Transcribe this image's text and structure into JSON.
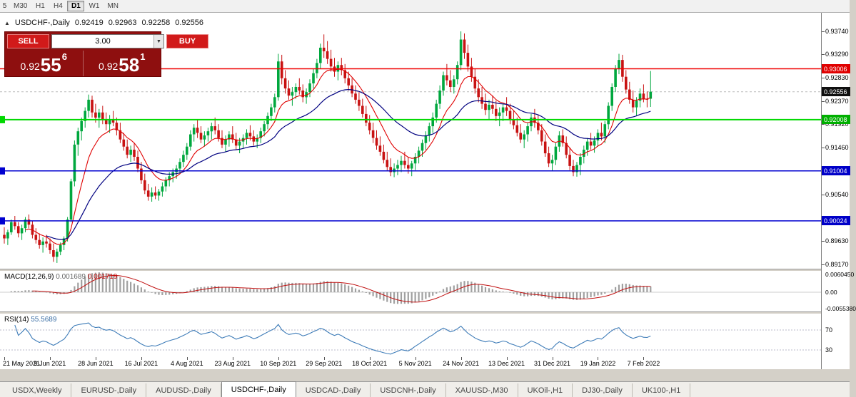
{
  "toolbar": {
    "timeframes": [
      "5",
      "M30",
      "H1",
      "H4",
      "D1",
      "W1",
      "MN"
    ],
    "active": "D1"
  },
  "symbol_bar": {
    "collapse_icon": "▲",
    "symbol": "USDCHF-,Daily",
    "open": "0.92419",
    "high": "0.92963",
    "low": "0.92258",
    "close": "0.92556"
  },
  "trade_panel": {
    "sell_label": "SELL",
    "buy_label": "BUY",
    "volume": "3.00",
    "dropdown_icon": "▼",
    "bid": {
      "prefix": "0.92",
      "main": "55",
      "sup": "6"
    },
    "ask": {
      "prefix": "0.92",
      "main": "58",
      "sup": "1"
    }
  },
  "macd": {
    "label": "MACD(12,26,9)",
    "value_main": "0.001689",
    "value_signal": "0.001719",
    "axis": [
      {
        "label": "0.0060450",
        "value": 0.006045
      },
      {
        "label": "0.00",
        "value": 0
      },
      {
        "label": "-0.0055380",
        "value": -0.005538
      }
    ]
  },
  "rsi": {
    "label": "RSI(14)",
    "value": "55.5689",
    "levels": [
      {
        "label": "70",
        "value": 70
      },
      {
        "label": "30",
        "value": 30
      }
    ]
  },
  "tabs": {
    "items": [
      "USDX,Weekly",
      "EURUSD-,Daily",
      "AUDUSD-,Daily",
      "USDCHF-,Daily",
      "USDCAD-,Daily",
      "USDCNH-,Daily",
      "XAUUSD-,M30",
      "UKOil-,H1",
      "DJ30-,Daily",
      "UK100-,H1"
    ],
    "active": "USDCHF-,Daily"
  },
  "chart_data": {
    "type": "candlestick",
    "title": "USDCHF-,Daily",
    "current_bid": 0.92556,
    "colors": {
      "up": "#00a73e",
      "down": "#c81212",
      "ma_fast": "#e00000",
      "ma_slow": "#000080",
      "macd_hist": "#a0a0a0",
      "macd_signal": "#c01010",
      "rsi_line": "#3e7cb8"
    },
    "indicators": {
      "ma_fast_period": 10,
      "ma_slow_period": 30,
      "macd_params": [
        12,
        26,
        9
      ],
      "rsi_period": 14
    },
    "hlines": [
      {
        "price": 0.93006,
        "color": "#f00000",
        "lw": 1.5,
        "marker": false
      },
      {
        "price": 0.92008,
        "color": "#00d800",
        "lw": 2,
        "marker": true
      },
      {
        "price": 0.91004,
        "color": "#0000d0",
        "lw": 1.5,
        "marker": true
      },
      {
        "price": 0.90024,
        "color": "#0000d0",
        "lw": 1.5,
        "marker": true
      }
    ],
    "y_axis": {
      "ticks": [
        {
          "label": "0.93740",
          "value": 0.9374
        },
        {
          "label": "0.93290",
          "value": 0.9329
        },
        {
          "label": "0.92830",
          "value": 0.9283
        },
        {
          "label": "0.92370",
          "value": 0.9237
        },
        {
          "label": "0.91920",
          "value": 0.9192
        },
        {
          "label": "0.91460",
          "value": 0.9146
        },
        {
          "label": "0.90540",
          "value": 0.9054
        },
        {
          "label": "0.89630",
          "value": 0.8963
        },
        {
          "label": "0.89170",
          "value": 0.8917
        }
      ],
      "badges": [
        {
          "label": "0.93006",
          "value": 0.93006,
          "bg": "#e00000"
        },
        {
          "label": "0.92556",
          "value": 0.92556,
          "bg": "#101010"
        },
        {
          "label": "0.92008",
          "value": 0.92008,
          "bg": "#00b000"
        },
        {
          "label": "0.91004",
          "value": 0.91004,
          "bg": "#0000c8"
        },
        {
          "label": "0.90024",
          "value": 0.90024,
          "bg": "#0000c8"
        }
      ]
    },
    "x_axis": {
      "labels": [
        {
          "text": "21 May 2021",
          "i": 0
        },
        {
          "text": "9 Jun 2021",
          "i": 13
        },
        {
          "text": "28 Jun 2021",
          "i": 26
        },
        {
          "text": "16 Jul 2021",
          "i": 39
        },
        {
          "text": "4 Aug 2021",
          "i": 52
        },
        {
          "text": "23 Aug 2021",
          "i": 65
        },
        {
          "text": "10 Sep 2021",
          "i": 78
        },
        {
          "text": "29 Sep 2021",
          "i": 91
        },
        {
          "text": "18 Oct 2021",
          "i": 104
        },
        {
          "text": "5 Nov 2021",
          "i": 117
        },
        {
          "text": "24 Nov 2021",
          "i": 130
        },
        {
          "text": "13 Dec 2021",
          "i": 143
        },
        {
          "text": "31 Dec 2021",
          "i": 156
        },
        {
          "text": "19 Jan 2022",
          "i": 169
        },
        {
          "text": "7 Feb 2022",
          "i": 182
        }
      ]
    },
    "ohlc": [
      [
        0.8975,
        0.899,
        0.8958,
        0.8968
      ],
      [
        0.8968,
        0.8985,
        0.8955,
        0.898
      ],
      [
        0.898,
        0.9005,
        0.8975,
        0.9
      ],
      [
        0.9,
        0.9012,
        0.8985,
        0.8992
      ],
      [
        0.8992,
        0.9,
        0.897,
        0.8978
      ],
      [
        0.8978,
        0.8995,
        0.8965,
        0.8988
      ],
      [
        0.8988,
        0.901,
        0.898,
        0.9005
      ],
      [
        0.9005,
        0.9015,
        0.8988,
        0.8995
      ],
      [
        0.8995,
        0.9002,
        0.8968,
        0.8975
      ],
      [
        0.8975,
        0.8988,
        0.8958,
        0.8965
      ],
      [
        0.8965,
        0.8978,
        0.8948,
        0.8955
      ],
      [
        0.8955,
        0.897,
        0.894,
        0.8962
      ],
      [
        0.8962,
        0.8975,
        0.895,
        0.8958
      ],
      [
        0.8958,
        0.8968,
        0.8938,
        0.8945
      ],
      [
        0.8945,
        0.8958,
        0.8922,
        0.8932
      ],
      [
        0.8932,
        0.8948,
        0.892,
        0.8942
      ],
      [
        0.8942,
        0.896,
        0.8935,
        0.8955
      ],
      [
        0.8955,
        0.8972,
        0.8945,
        0.8968
      ],
      [
        0.8968,
        0.901,
        0.8962,
        0.9005
      ],
      [
        0.9005,
        0.9085,
        0.9,
        0.908
      ],
      [
        0.908,
        0.916,
        0.907,
        0.9152
      ],
      [
        0.9152,
        0.9185,
        0.913,
        0.9178
      ],
      [
        0.9178,
        0.9205,
        0.916,
        0.9198
      ],
      [
        0.9198,
        0.9225,
        0.9185,
        0.9218
      ],
      [
        0.9218,
        0.925,
        0.9205,
        0.924
      ],
      [
        0.924,
        0.9248,
        0.9205,
        0.9215
      ],
      [
        0.9215,
        0.9232,
        0.9195,
        0.9205
      ],
      [
        0.9205,
        0.9222,
        0.9185,
        0.9215
      ],
      [
        0.9215,
        0.9228,
        0.9192,
        0.92
      ],
      [
        0.92,
        0.9215,
        0.918,
        0.9192
      ],
      [
        0.9192,
        0.921,
        0.9175,
        0.9202
      ],
      [
        0.9202,
        0.9218,
        0.9188,
        0.9195
      ],
      [
        0.9195,
        0.9205,
        0.917,
        0.918
      ],
      [
        0.918,
        0.9195,
        0.9155,
        0.9162
      ],
      [
        0.9162,
        0.9175,
        0.914,
        0.9148
      ],
      [
        0.9148,
        0.9162,
        0.9125,
        0.9132
      ],
      [
        0.9132,
        0.915,
        0.9118,
        0.9142
      ],
      [
        0.9142,
        0.9155,
        0.912,
        0.9128
      ],
      [
        0.9128,
        0.914,
        0.9098,
        0.9105
      ],
      [
        0.9105,
        0.9118,
        0.9075,
        0.9082
      ],
      [
        0.9082,
        0.9095,
        0.9055,
        0.9062
      ],
      [
        0.9062,
        0.9075,
        0.9042,
        0.905
      ],
      [
        0.905,
        0.9068,
        0.904,
        0.9058
      ],
      [
        0.9058,
        0.907,
        0.9045,
        0.9052
      ],
      [
        0.9052,
        0.9065,
        0.9042,
        0.906
      ],
      [
        0.906,
        0.9078,
        0.905,
        0.907
      ],
      [
        0.907,
        0.9088,
        0.906,
        0.9082
      ],
      [
        0.9082,
        0.9098,
        0.907,
        0.909
      ],
      [
        0.909,
        0.9105,
        0.9078,
        0.9098
      ],
      [
        0.9098,
        0.9112,
        0.9085,
        0.9105
      ],
      [
        0.9105,
        0.9125,
        0.9095,
        0.9118
      ],
      [
        0.9118,
        0.914,
        0.9108,
        0.9132
      ],
      [
        0.9132,
        0.9155,
        0.9122,
        0.9148
      ],
      [
        0.9148,
        0.918,
        0.914,
        0.9172
      ],
      [
        0.9172,
        0.9192,
        0.9158,
        0.9185
      ],
      [
        0.9185,
        0.92,
        0.9165,
        0.9175
      ],
      [
        0.9175,
        0.9188,
        0.9155,
        0.9162
      ],
      [
        0.9162,
        0.9178,
        0.9148,
        0.917
      ],
      [
        0.917,
        0.9185,
        0.9158,
        0.9178
      ],
      [
        0.9178,
        0.9195,
        0.9162,
        0.9188
      ],
      [
        0.9188,
        0.9205,
        0.9172,
        0.918
      ],
      [
        0.918,
        0.9192,
        0.9158,
        0.9165
      ],
      [
        0.9165,
        0.918,
        0.9145,
        0.9152
      ],
      [
        0.9152,
        0.917,
        0.9138,
        0.9162
      ],
      [
        0.9162,
        0.9178,
        0.9148,
        0.9172
      ],
      [
        0.9172,
        0.9188,
        0.9155,
        0.9162
      ],
      [
        0.9162,
        0.9175,
        0.9142,
        0.915
      ],
      [
        0.915,
        0.9165,
        0.9135,
        0.9158
      ],
      [
        0.9158,
        0.9172,
        0.9145,
        0.9165
      ],
      [
        0.9165,
        0.9182,
        0.9152,
        0.9175
      ],
      [
        0.9175,
        0.919,
        0.916,
        0.9168
      ],
      [
        0.9168,
        0.918,
        0.915,
        0.9158
      ],
      [
        0.9158,
        0.9172,
        0.9145,
        0.9165
      ],
      [
        0.9165,
        0.9185,
        0.9155,
        0.9178
      ],
      [
        0.9178,
        0.9198,
        0.9168,
        0.9192
      ],
      [
        0.9192,
        0.9215,
        0.9182,
        0.9208
      ],
      [
        0.9208,
        0.9232,
        0.9198,
        0.9225
      ],
      [
        0.9225,
        0.9252,
        0.9215,
        0.9245
      ],
      [
        0.9245,
        0.933,
        0.9238,
        0.9315
      ],
      [
        0.9315,
        0.9328,
        0.927,
        0.9282
      ],
      [
        0.9282,
        0.9298,
        0.9252,
        0.9262
      ],
      [
        0.9262,
        0.9278,
        0.924,
        0.9248
      ],
      [
        0.9248,
        0.9265,
        0.9228,
        0.9255
      ],
      [
        0.9255,
        0.9272,
        0.9242,
        0.9265
      ],
      [
        0.9265,
        0.9282,
        0.925,
        0.9258
      ],
      [
        0.9258,
        0.927,
        0.9235,
        0.9245
      ],
      [
        0.9245,
        0.9262,
        0.9232,
        0.9255
      ],
      [
        0.9255,
        0.928,
        0.9245,
        0.9272
      ],
      [
        0.9272,
        0.93,
        0.9262,
        0.9292
      ],
      [
        0.9292,
        0.932,
        0.9282,
        0.9312
      ],
      [
        0.9312,
        0.935,
        0.93,
        0.9342
      ],
      [
        0.9342,
        0.9368,
        0.9322,
        0.9335
      ],
      [
        0.9335,
        0.9355,
        0.931,
        0.932
      ],
      [
        0.932,
        0.9338,
        0.9295,
        0.9305
      ],
      [
        0.9305,
        0.9322,
        0.9285,
        0.9295
      ],
      [
        0.9295,
        0.9315,
        0.9278,
        0.9308
      ],
      [
        0.9308,
        0.9322,
        0.9288,
        0.9298
      ],
      [
        0.9298,
        0.931,
        0.9272,
        0.9282
      ],
      [
        0.9282,
        0.9295,
        0.9258,
        0.9268
      ],
      [
        0.9268,
        0.9282,
        0.9245,
        0.9252
      ],
      [
        0.9252,
        0.9268,
        0.9232,
        0.924
      ],
      [
        0.924,
        0.9255,
        0.9218,
        0.9228
      ],
      [
        0.9228,
        0.9242,
        0.9205,
        0.9212
      ],
      [
        0.9212,
        0.9228,
        0.9188,
        0.9195
      ],
      [
        0.9195,
        0.921,
        0.9172,
        0.918
      ],
      [
        0.918,
        0.9195,
        0.9155,
        0.9165
      ],
      [
        0.9165,
        0.918,
        0.9142,
        0.915
      ],
      [
        0.915,
        0.9168,
        0.913,
        0.9138
      ],
      [
        0.9138,
        0.9152,
        0.9115,
        0.9122
      ],
      [
        0.9122,
        0.9138,
        0.91,
        0.9108
      ],
      [
        0.9108,
        0.9125,
        0.909,
        0.9098
      ],
      [
        0.9098,
        0.9115,
        0.9088,
        0.9105
      ],
      [
        0.9105,
        0.9122,
        0.9092,
        0.9112
      ],
      [
        0.9112,
        0.913,
        0.9098,
        0.912
      ],
      [
        0.912,
        0.9138,
        0.9105,
        0.9112
      ],
      [
        0.9112,
        0.9128,
        0.9095,
        0.9105
      ],
      [
        0.9105,
        0.912,
        0.909,
        0.9115
      ],
      [
        0.9115,
        0.9135,
        0.9102,
        0.9128
      ],
      [
        0.9128,
        0.9148,
        0.9115,
        0.914
      ],
      [
        0.914,
        0.9162,
        0.9128,
        0.9155
      ],
      [
        0.9155,
        0.9178,
        0.9142,
        0.917
      ],
      [
        0.917,
        0.9195,
        0.9158,
        0.9188
      ],
      [
        0.9188,
        0.9215,
        0.9175,
        0.9205
      ],
      [
        0.9205,
        0.924,
        0.9195,
        0.9232
      ],
      [
        0.9232,
        0.9268,
        0.9222,
        0.9258
      ],
      [
        0.9258,
        0.9295,
        0.9248,
        0.9288
      ],
      [
        0.9288,
        0.931,
        0.9268,
        0.9278
      ],
      [
        0.9278,
        0.9298,
        0.9255,
        0.9265
      ],
      [
        0.9265,
        0.9288,
        0.9252,
        0.928
      ],
      [
        0.928,
        0.9315,
        0.927,
        0.9308
      ],
      [
        0.9308,
        0.9374,
        0.9298,
        0.9358
      ],
      [
        0.9358,
        0.937,
        0.932,
        0.9332
      ],
      [
        0.9332,
        0.9348,
        0.9295,
        0.9305
      ],
      [
        0.9305,
        0.9322,
        0.9275,
        0.9285
      ],
      [
        0.9285,
        0.93,
        0.9252,
        0.9262
      ],
      [
        0.9262,
        0.928,
        0.9235,
        0.9245
      ],
      [
        0.9245,
        0.9265,
        0.9222,
        0.9232
      ],
      [
        0.9232,
        0.9252,
        0.921,
        0.922
      ],
      [
        0.922,
        0.924,
        0.92,
        0.923
      ],
      [
        0.923,
        0.9248,
        0.9212,
        0.9222
      ],
      [
        0.9222,
        0.9238,
        0.9198,
        0.9208
      ],
      [
        0.9208,
        0.9225,
        0.9188,
        0.9215
      ],
      [
        0.9215,
        0.9232,
        0.9198,
        0.9225
      ],
      [
        0.9225,
        0.9245,
        0.9208,
        0.9218
      ],
      [
        0.9218,
        0.9232,
        0.9192,
        0.92
      ],
      [
        0.92,
        0.9218,
        0.9182,
        0.919
      ],
      [
        0.919,
        0.9205,
        0.9168,
        0.9175
      ],
      [
        0.9175,
        0.9192,
        0.9155,
        0.9162
      ],
      [
        0.9162,
        0.918,
        0.9145,
        0.9172
      ],
      [
        0.9172,
        0.9195,
        0.9158,
        0.9188
      ],
      [
        0.9188,
        0.9212,
        0.9178,
        0.9205
      ],
      [
        0.9205,
        0.9222,
        0.9185,
        0.9195
      ],
      [
        0.9195,
        0.921,
        0.9172,
        0.918
      ],
      [
        0.918,
        0.9192,
        0.915,
        0.9158
      ],
      [
        0.9158,
        0.9172,
        0.9128,
        0.9135
      ],
      [
        0.9135,
        0.9148,
        0.9108,
        0.9115
      ],
      [
        0.9115,
        0.9132,
        0.91,
        0.9122
      ],
      [
        0.9122,
        0.9155,
        0.9112,
        0.9148
      ],
      [
        0.9148,
        0.9178,
        0.9138,
        0.917
      ],
      [
        0.917,
        0.9182,
        0.9148,
        0.9155
      ],
      [
        0.9155,
        0.9168,
        0.9125,
        0.9132
      ],
      [
        0.9132,
        0.9145,
        0.9102,
        0.911
      ],
      [
        0.911,
        0.9122,
        0.909,
        0.9098
      ],
      [
        0.9098,
        0.9118,
        0.9089,
        0.9112
      ],
      [
        0.9112,
        0.9135,
        0.9092,
        0.9128
      ],
      [
        0.9128,
        0.915,
        0.9115,
        0.9142
      ],
      [
        0.9142,
        0.9165,
        0.913,
        0.9158
      ],
      [
        0.9158,
        0.9175,
        0.9142,
        0.915
      ],
      [
        0.915,
        0.9168,
        0.9136,
        0.916
      ],
      [
        0.916,
        0.9182,
        0.9148,
        0.9175
      ],
      [
        0.9175,
        0.9195,
        0.916,
        0.9168
      ],
      [
        0.9168,
        0.9198,
        0.9155,
        0.9192
      ],
      [
        0.9192,
        0.9235,
        0.9182,
        0.9228
      ],
      [
        0.9228,
        0.9272,
        0.9218,
        0.9265
      ],
      [
        0.9265,
        0.9308,
        0.9255,
        0.93
      ],
      [
        0.93,
        0.933,
        0.929,
        0.9318
      ],
      [
        0.9318,
        0.9328,
        0.9275,
        0.9285
      ],
      [
        0.9285,
        0.9298,
        0.9252,
        0.926
      ],
      [
        0.926,
        0.9275,
        0.9232,
        0.924
      ],
      [
        0.924,
        0.9258,
        0.9215,
        0.9225
      ],
      [
        0.9225,
        0.9245,
        0.9208,
        0.9238
      ],
      [
        0.9238,
        0.9262,
        0.9225,
        0.9252
      ],
      [
        0.9252,
        0.927,
        0.9235,
        0.9242
      ],
      [
        0.9242,
        0.9256,
        0.9225,
        0.924
      ],
      [
        0.92419,
        0.92963,
        0.92258,
        0.92556
      ]
    ]
  }
}
